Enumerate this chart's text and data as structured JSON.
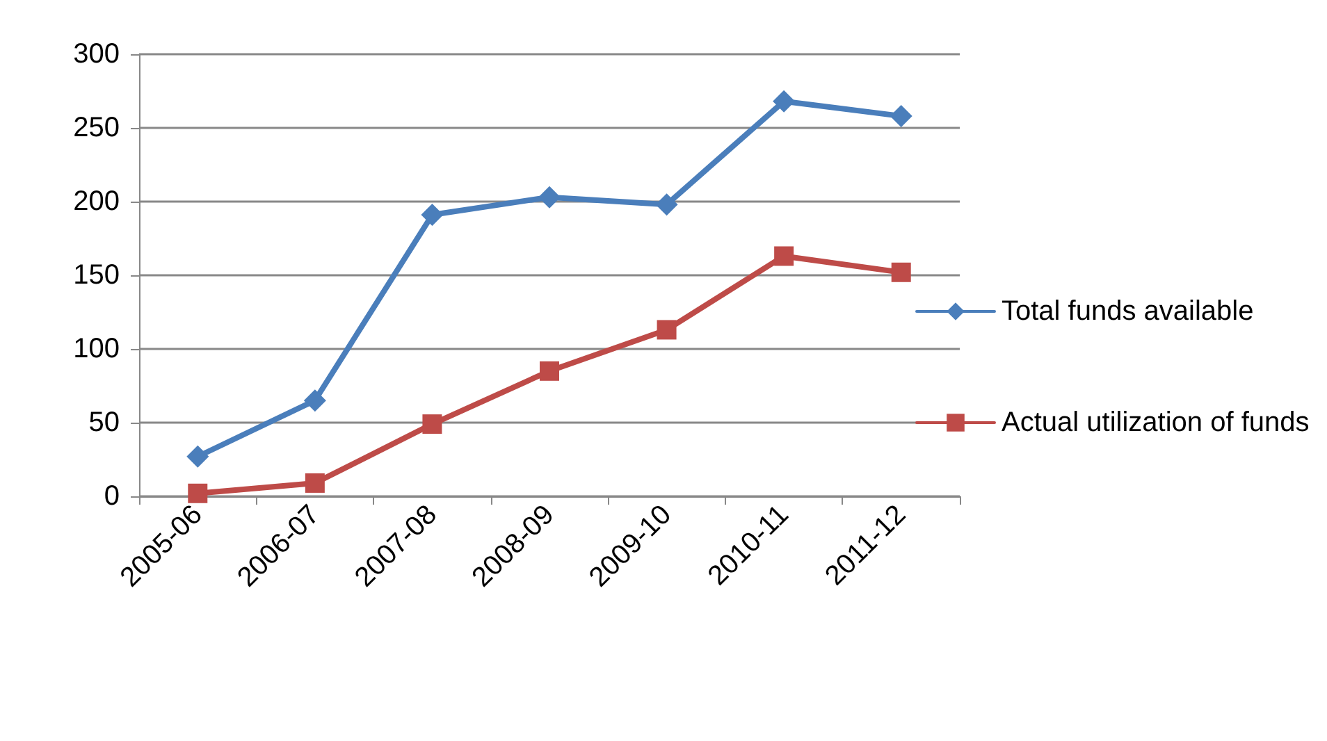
{
  "chart_data": {
    "type": "line",
    "categories": [
      "2005-06",
      "2006-07",
      "2007-08",
      "2008-09",
      "2009-10",
      "2010-11",
      "2011-12"
    ],
    "series": [
      {
        "name": "Total funds available",
        "color": "#4a7ebb",
        "marker": "diamond",
        "values": [
          27,
          65,
          191,
          203,
          198,
          268,
          258
        ]
      },
      {
        "name": "Actual utilization of funds",
        "color": "#be4b48",
        "marker": "square",
        "values": [
          2,
          9,
          49,
          85,
          113,
          163,
          152
        ]
      }
    ],
    "ylim": [
      0,
      300
    ],
    "yticks": [
      0,
      50,
      100,
      150,
      200,
      250,
      300
    ],
    "grid": "y",
    "legend": "right",
    "line_style": "solid"
  }
}
